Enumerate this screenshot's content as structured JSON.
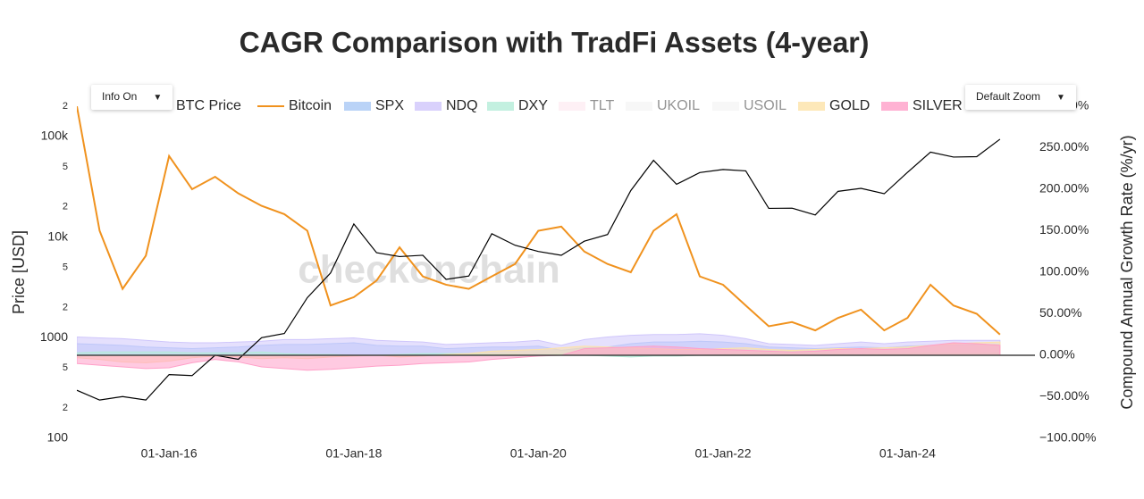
{
  "chart_data": {
    "type": "line",
    "title": "CAGR Comparison with TradFi Assets (4-year)",
    "ylabel": "Price [USD]",
    "y2label": "Compound Annual Growth Rate (%/yr)",
    "watermark": "checkonchain",
    "controls": [
      "Info On",
      "Default Zoom"
    ],
    "log_y": true,
    "zeroline_y2": true,
    "xlim": [
      "2015-01-01",
      "2025-02-20"
    ],
    "xticks": [
      {
        "value": "2016-01-01",
        "label": "01-Jan-16"
      },
      {
        "value": "2018-01-01",
        "label": "01-Jan-18"
      },
      {
        "value": "2020-01-01",
        "label": "01-Jan-20"
      },
      {
        "value": "2022-01-01",
        "label": "01-Jan-22"
      },
      {
        "value": "2024-01-01",
        "label": "01-Jan-24"
      }
    ],
    "ylim": [
      100,
      200000
    ],
    "yticks": [
      100,
      {
        "value": 200,
        "label": "2"
      },
      {
        "value": 500,
        "label": "5"
      },
      1000,
      {
        "value": 2000,
        "label": "2"
      },
      {
        "value": 5000,
        "label": "5"
      },
      {
        "value": 10000,
        "label": "10k"
      },
      {
        "value": 20000,
        "label": "2"
      },
      {
        "value": 50000,
        "label": "5"
      },
      {
        "value": 100000,
        "label": "100k"
      },
      {
        "value": 200000,
        "label": "2"
      }
    ],
    "y2lim": [
      -100,
      300
    ],
    "y2ticks": [
      {
        "value": -100,
        "label": "−100.00%"
      },
      {
        "value": -50,
        "label": "−50.00%"
      },
      {
        "value": 0,
        "label": "0.00%"
      },
      {
        "value": 50,
        "label": "50.00%"
      },
      {
        "value": 100,
        "label": "100.00%"
      },
      {
        "value": 150,
        "label": "150.00%"
      },
      {
        "value": 200,
        "label": "200.00%"
      },
      {
        "value": 250,
        "label": "250.00%"
      },
      {
        "value": 300,
        "label": "300.00%"
      }
    ],
    "x": [
      "2015-01-01",
      "2015-04-01",
      "2015-07-01",
      "2015-10-01",
      "2016-01-01",
      "2016-04-01",
      "2016-07-01",
      "2016-10-01",
      "2017-01-01",
      "2017-04-01",
      "2017-07-01",
      "2017-10-01",
      "2018-01-01",
      "2018-04-01",
      "2018-07-01",
      "2018-10-01",
      "2019-01-01",
      "2019-04-01",
      "2019-07-01",
      "2019-10-01",
      "2020-01-01",
      "2020-04-01",
      "2020-07-01",
      "2020-10-01",
      "2021-01-01",
      "2021-04-01",
      "2021-07-01",
      "2021-10-01",
      "2022-01-01",
      "2022-04-01",
      "2022-07-01",
      "2022-10-01",
      "2023-01-01",
      "2023-04-01",
      "2023-07-01",
      "2023-10-01",
      "2024-01-01",
      "2024-04-01",
      "2024-07-01",
      "2024-10-01",
      "2025-01-01"
    ],
    "series": [
      {
        "name": "BTC Price",
        "color": "#000000",
        "style": "line",
        "axis": "y",
        "values": [
          300,
          240,
          260,
          240,
          430,
          420,
          670,
          610,
          1000,
          1100,
          2500,
          4400,
          13500,
          7000,
          6400,
          6600,
          3800,
          4100,
          10800,
          8300,
          7200,
          6600,
          9100,
          10600,
          29000,
          58000,
          33500,
          43800,
          47000,
          45500,
          19300,
          19400,
          16600,
          28500,
          30500,
          27000,
          44000,
          70000,
          62500,
          63000,
          94000
        ]
      },
      {
        "name": "Bitcoin",
        "color": "#f0921e",
        "style": "line",
        "axis": "y2",
        "values": [
          300,
          150,
          80,
          120,
          240,
          200,
          215,
          195,
          180,
          170,
          150,
          60,
          70,
          90,
          130,
          95,
          85,
          80,
          95,
          110,
          150,
          155,
          125,
          110,
          100,
          150,
          170,
          95,
          85,
          60,
          35,
          40,
          30,
          45,
          55,
          30,
          45,
          85,
          60,
          50,
          25
        ]
      },
      {
        "name": "SPX",
        "color": "#a9c8f5",
        "style": "area",
        "axis": "y2",
        "values": [
          14,
          13,
          12,
          10,
          9,
          8,
          9,
          10,
          12,
          13,
          13,
          14,
          15,
          12,
          11,
          11,
          8,
          9,
          10,
          10,
          11,
          6,
          9,
          10,
          14,
          16,
          16,
          17,
          16,
          14,
          10,
          9,
          8,
          9,
          10,
          9,
          11,
          12,
          12,
          13,
          13
        ]
      },
      {
        "name": "NDQ",
        "color": "#cfc6fb",
        "style": "area",
        "axis": "y2",
        "values": [
          22,
          21,
          20,
          18,
          16,
          15,
          15,
          16,
          17,
          19,
          19,
          20,
          21,
          18,
          17,
          16,
          13,
          14,
          15,
          16,
          18,
          12,
          19,
          22,
          24,
          25,
          25,
          26,
          24,
          20,
          14,
          13,
          12,
          14,
          16,
          14,
          16,
          17,
          18,
          18,
          18
        ]
      },
      {
        "name": "DXY",
        "color": "#b4ecd8",
        "style": "area",
        "axis": "y2",
        "values": [
          3,
          4,
          4,
          4,
          4,
          3,
          3,
          3,
          4,
          2,
          1,
          1,
          0,
          0,
          1,
          2,
          2,
          2,
          1,
          1,
          0,
          1,
          0,
          -1,
          -2,
          -1,
          -1,
          0,
          1,
          2,
          4,
          5,
          3,
          2,
          1,
          2,
          2,
          3,
          2,
          2,
          3
        ]
      },
      {
        "name": "TLT",
        "color": "#fcd6e2",
        "style": "area",
        "axis": "y2",
        "visible": false
      },
      {
        "name": "UKOIL",
        "color": "#e8e8e8",
        "style": "area",
        "axis": "y2",
        "visible": false
      },
      {
        "name": "USOIL",
        "color": "#e8e8e8",
        "style": "area",
        "axis": "y2",
        "visible": false
      },
      {
        "name": "GOLD",
        "color": "#fde2a8",
        "style": "area",
        "axis": "y2",
        "values": [
          -3,
          -5,
          -8,
          -9,
          -7,
          -3,
          -1,
          -2,
          -4,
          -3,
          -4,
          -2,
          -1,
          0,
          -2,
          -1,
          1,
          2,
          5,
          6,
          7,
          9,
          11,
          10,
          9,
          8,
          7,
          7,
          8,
          9,
          7,
          6,
          7,
          8,
          8,
          9,
          10,
          12,
          14,
          15,
          16
        ]
      },
      {
        "name": "SILVER",
        "color": "#ff9fc8",
        "style": "area",
        "axis": "y2",
        "values": [
          -10,
          -12,
          -14,
          -16,
          -15,
          -9,
          -5,
          -8,
          -14,
          -16,
          -18,
          -17,
          -15,
          -13,
          -12,
          -10,
          -9,
          -8,
          -5,
          -3,
          -1,
          0,
          8,
          9,
          10,
          11,
          10,
          8,
          7,
          6,
          5,
          4,
          5,
          7,
          8,
          7,
          8,
          12,
          15,
          14,
          12
        ]
      }
    ]
  }
}
